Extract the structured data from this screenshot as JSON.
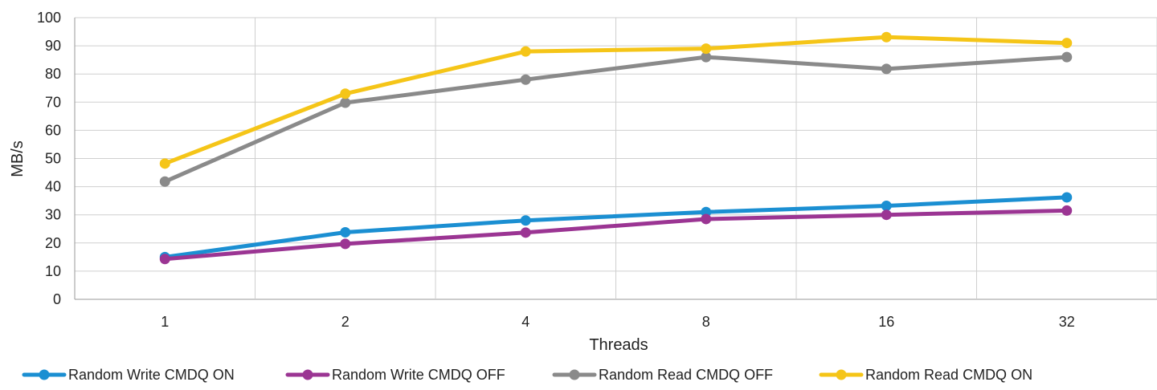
{
  "chart_data": {
    "type": "line",
    "title": "",
    "xlabel": "Threads",
    "ylabel": "MB/s",
    "categories": [
      "1",
      "2",
      "4",
      "8",
      "16",
      "32"
    ],
    "ylim": [
      0,
      100
    ],
    "yticks": [
      0,
      10,
      20,
      30,
      40,
      50,
      60,
      70,
      80,
      90,
      100
    ],
    "grid": true,
    "legend_position": "bottom",
    "series": [
      {
        "name": "Random Write CMDQ ON",
        "color": "#1b8fd2",
        "values": [
          15,
          23.8,
          28,
          31,
          33.2,
          36.2
        ]
      },
      {
        "name": "Random Write CMDQ OFF",
        "color": "#9b3593",
        "values": [
          14.3,
          19.7,
          23.7,
          28.5,
          30,
          31.5
        ]
      },
      {
        "name": "Random Read CMDQ OFF",
        "color": "#8a8a8a",
        "values": [
          41.8,
          69.8,
          78,
          86,
          81.8,
          86
        ]
      },
      {
        "name": "Random Read CMDQ ON",
        "color": "#f5c518",
        "values": [
          48.2,
          73,
          88,
          89,
          93.1,
          91
        ]
      }
    ]
  }
}
